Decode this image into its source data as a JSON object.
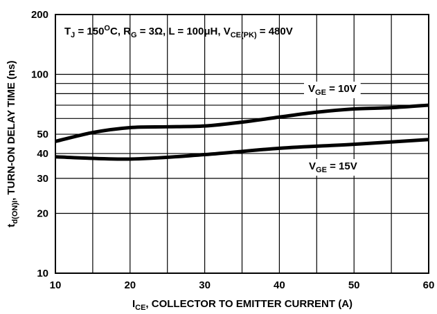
{
  "chart_data": {
    "type": "line",
    "title": "",
    "condition": {
      "tj": "T",
      "tj_sub": "J",
      "tj_mid": " = 150",
      "tj_sup": "O",
      "rg": "C, R",
      "rg_sub": "G",
      "rest": " = 3Ω, L = 100μH, V",
      "vce_sub": "CE(PK)",
      "end": " = 480V"
    },
    "xlabel": {
      "main": "I",
      "sub": "CE",
      "rest": ", COLLECTOR TO EMITTER CURRENT (A)"
    },
    "ylabel": {
      "main": "t",
      "sub": "d(ON)I",
      "rest": ", TURN-ON DELAY TIME (ns)"
    },
    "xlim": [
      10,
      60
    ],
    "ylim": [
      10,
      200
    ],
    "yscale": "log",
    "grid": true,
    "x_ticks": [
      "10",
      "20",
      "30",
      "40",
      "50",
      "60"
    ],
    "y_ticks": [
      {
        "value": 10,
        "label": "10"
      },
      {
        "value": 20,
        "label": "20"
      },
      {
        "value": 30,
        "label": "30"
      },
      {
        "value": 40,
        "label": "40"
      },
      {
        "value": 50,
        "label": "50"
      },
      {
        "value": 100,
        "label": "100"
      },
      {
        "value": 200,
        "label": "200"
      }
    ],
    "series": [
      {
        "name": "VGE = 10V",
        "label": {
          "main": "V",
          "sub": "GE",
          "rest": " = 10V"
        },
        "x": [
          10,
          15,
          20,
          25,
          30,
          35,
          40,
          45,
          50,
          55,
          60
        ],
        "y": [
          46,
          51,
          54,
          54.5,
          55,
          57.5,
          61,
          64.5,
          67,
          68,
          70
        ]
      },
      {
        "name": "VGE = 15V",
        "label": {
          "main": "V",
          "sub": "GE",
          "rest": " = 15V"
        },
        "x": [
          10,
          20,
          30,
          40,
          50,
          60
        ],
        "y": [
          38.5,
          37.5,
          39.5,
          42.5,
          44.5,
          47
        ]
      }
    ]
  }
}
